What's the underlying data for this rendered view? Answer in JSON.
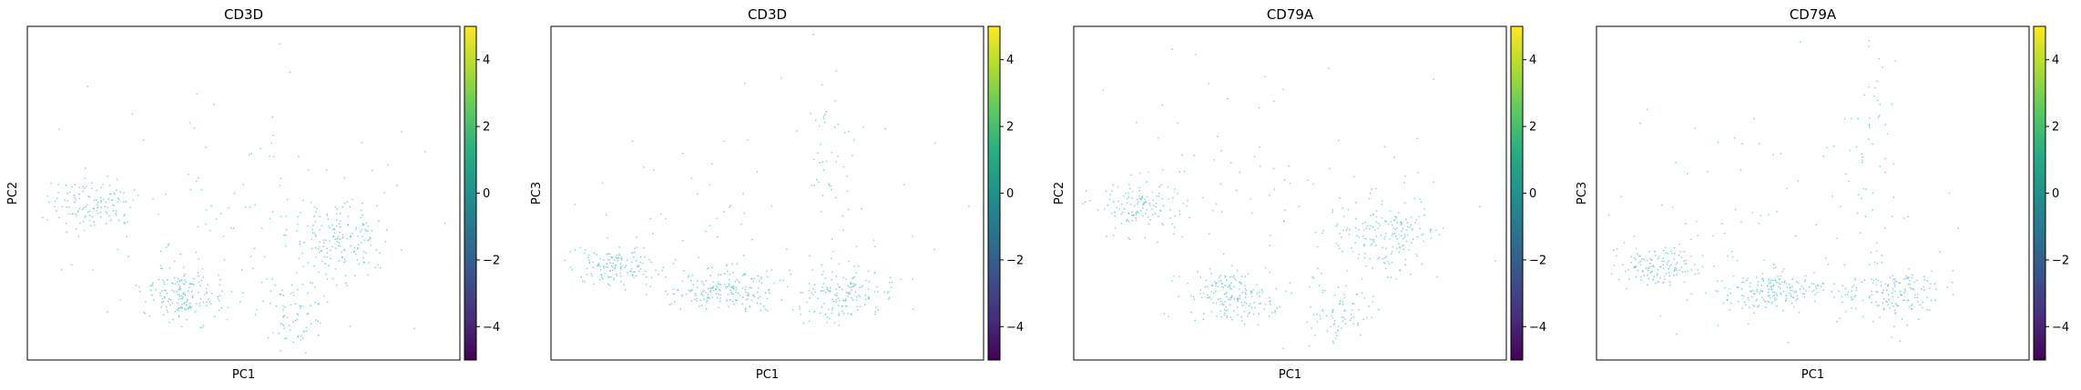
{
  "figure": {
    "colormap": "viridis",
    "point_color": "#5ec3c7",
    "colorbar_ticks": [
      "4",
      "2",
      "0",
      "−2",
      "−4"
    ]
  },
  "chart_data": [
    {
      "type": "scatter",
      "title": "CD3D",
      "xlabel": "PC1",
      "ylabel": "PC2",
      "grid": false,
      "axis_ticks": false,
      "colorbar": {
        "range": [
          -5,
          5
        ],
        "ticks": [
          4,
          2,
          0,
          -2,
          -4
        ]
      },
      "clusters": [
        {
          "center": [
            0.15,
            0.53
          ],
          "spread": [
            0.05,
            0.04
          ],
          "count": 130
        },
        {
          "center": [
            0.36,
            0.81
          ],
          "spread": [
            0.05,
            0.04
          ],
          "count": 170
        },
        {
          "center": [
            0.72,
            0.63
          ],
          "spread": [
            0.06,
            0.06
          ],
          "count": 180
        },
        {
          "center": [
            0.62,
            0.86
          ],
          "spread": [
            0.04,
            0.05
          ],
          "count": 80
        },
        {
          "center": [
            0.45,
            0.5
          ],
          "spread": [
            0.22,
            0.2
          ],
          "count": 90
        }
      ]
    },
    {
      "type": "scatter",
      "title": "CD3D",
      "xlabel": "PC1",
      "ylabel": "PC3",
      "grid": false,
      "axis_ticks": false,
      "colorbar": {
        "range": [
          -5,
          5
        ],
        "ticks": [
          4,
          2,
          0,
          -2,
          -4
        ]
      },
      "clusters": [
        {
          "center": [
            0.14,
            0.72
          ],
          "spread": [
            0.05,
            0.03
          ],
          "count": 140
        },
        {
          "center": [
            0.4,
            0.79
          ],
          "spread": [
            0.06,
            0.03
          ],
          "count": 180
        },
        {
          "center": [
            0.68,
            0.8
          ],
          "spread": [
            0.06,
            0.04
          ],
          "count": 160
        },
        {
          "center": [
            0.64,
            0.35
          ],
          "spread": [
            0.03,
            0.15
          ],
          "count": 45
        },
        {
          "center": [
            0.45,
            0.6
          ],
          "spread": [
            0.22,
            0.18
          ],
          "count": 80
        }
      ]
    },
    {
      "type": "scatter",
      "title": "CD79A",
      "xlabel": "PC1",
      "ylabel": "PC2",
      "grid": false,
      "axis_ticks": false,
      "colorbar": {
        "range": [
          -5,
          5
        ],
        "ticks": [
          4,
          2,
          0,
          -2,
          -4
        ]
      },
      "clusters": [
        {
          "center": [
            0.15,
            0.53
          ],
          "spread": [
            0.05,
            0.04
          ],
          "count": 130
        },
        {
          "center": [
            0.36,
            0.81
          ],
          "spread": [
            0.05,
            0.04
          ],
          "count": 170
        },
        {
          "center": [
            0.72,
            0.63
          ],
          "spread": [
            0.06,
            0.06
          ],
          "count": 180
        },
        {
          "center": [
            0.62,
            0.86
          ],
          "spread": [
            0.04,
            0.05
          ],
          "count": 80
        },
        {
          "center": [
            0.45,
            0.5
          ],
          "spread": [
            0.22,
            0.2
          ],
          "count": 90
        }
      ]
    },
    {
      "type": "scatter",
      "title": "CD79A",
      "xlabel": "PC1",
      "ylabel": "PC3",
      "grid": false,
      "axis_ticks": false,
      "colorbar": {
        "range": [
          -5,
          5
        ],
        "ticks": [
          4,
          2,
          0,
          -2,
          -4
        ]
      },
      "clusters": [
        {
          "center": [
            0.14,
            0.72
          ],
          "spread": [
            0.05,
            0.03
          ],
          "count": 140
        },
        {
          "center": [
            0.4,
            0.79
          ],
          "spread": [
            0.06,
            0.03
          ],
          "count": 180
        },
        {
          "center": [
            0.68,
            0.8
          ],
          "spread": [
            0.06,
            0.04
          ],
          "count": 160
        },
        {
          "center": [
            0.64,
            0.35
          ],
          "spread": [
            0.03,
            0.15
          ],
          "count": 45
        },
        {
          "center": [
            0.45,
            0.6
          ],
          "spread": [
            0.22,
            0.18
          ],
          "count": 80
        }
      ]
    }
  ]
}
